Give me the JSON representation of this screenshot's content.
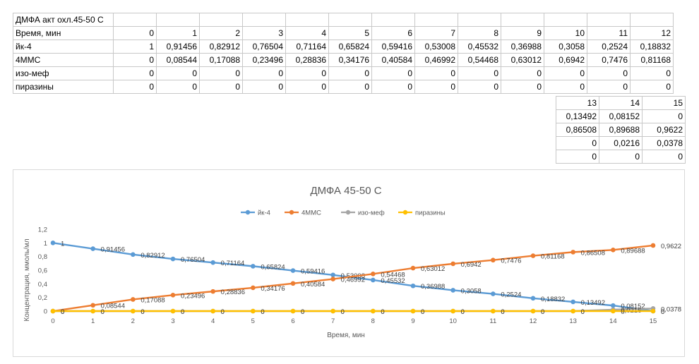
{
  "sheet": {
    "title": "ДМФА акт охл.45-50 С",
    "header_label": "Время, мин",
    "times": [
      "0",
      "1",
      "2",
      "3",
      "4",
      "5",
      "6",
      "7",
      "8",
      "9",
      "10",
      "11",
      "12"
    ],
    "rows": [
      {
        "label": "йк-4",
        "values": [
          "1",
          "0,91456",
          "0,82912",
          "0,76504",
          "0,71164",
          "0,65824",
          "0,59416",
          "0,53008",
          "0,45532",
          "0,36988",
          "0,3058",
          "0,2524",
          "0,18832"
        ]
      },
      {
        "label": "4ММС",
        "values": [
          "0",
          "0,08544",
          "0,17088",
          "0,23496",
          "0,28836",
          "0,34176",
          "0,40584",
          "0,46992",
          "0,54468",
          "0,63012",
          "0,6942",
          "0,7476",
          "0,81168"
        ]
      },
      {
        "label": "изо-меф",
        "values": [
          "0",
          "0",
          "0",
          "0",
          "0",
          "0",
          "0",
          "0",
          "0",
          "0",
          "0",
          "0",
          "0"
        ]
      },
      {
        "label": "пиразины",
        "values": [
          "0",
          "0",
          "0",
          "0",
          "0",
          "0",
          "0",
          "0",
          "0",
          "0",
          "0",
          "0",
          "0"
        ]
      }
    ],
    "ext_times": [
      "13",
      "14",
      "15"
    ],
    "ext_rows": [
      [
        "0,13492",
        "0,08152",
        "0"
      ],
      [
        "0,86508",
        "0,89688",
        "0,9622"
      ],
      [
        "0",
        "0,0216",
        "0,0378"
      ],
      [
        "0",
        "0",
        "0"
      ]
    ]
  },
  "chart_data": {
    "type": "line",
    "title": "ДМФА 45-50 С",
    "xlabel": "Время, мин",
    "ylabel": "Концентрация, ммоль/мл",
    "x": [
      0,
      1,
      2,
      3,
      4,
      5,
      6,
      7,
      8,
      9,
      10,
      11,
      12,
      13,
      14,
      15
    ],
    "xlim": [
      0,
      15
    ],
    "ylim": [
      0,
      1.2
    ],
    "y_ticks": [
      "0",
      "0,2",
      "0,4",
      "0,6",
      "0,8",
      "1",
      "1,2"
    ],
    "x_ticks": [
      "0",
      "1",
      "2",
      "3",
      "4",
      "5",
      "6",
      "7",
      "8",
      "9",
      "10",
      "11",
      "12",
      "13",
      "14",
      "15"
    ],
    "legend_position": "top",
    "grid": false,
    "series": [
      {
        "name": "йк-4",
        "color": "#5B9BD5",
        "values": [
          1,
          0.91456,
          0.82912,
          0.76504,
          0.71164,
          0.65824,
          0.59416,
          0.53008,
          0.45532,
          0.36988,
          0.3058,
          0.2524,
          0.18832,
          0.13492,
          0.08152,
          0
        ],
        "labels": [
          "1",
          "0,91456",
          "0,82912",
          "0,76504",
          "0,71164",
          "0,65824",
          "0,59416",
          "0,53008",
          "0,45532",
          "0,36988",
          "0,3058",
          "0,2524",
          "0,18832",
          "0,13492",
          "0,08152",
          "0"
        ]
      },
      {
        "name": "4ММС",
        "color": "#ED7D31",
        "values": [
          0,
          0.08544,
          0.17088,
          0.23496,
          0.28836,
          0.34176,
          0.40584,
          0.46992,
          0.54468,
          0.63012,
          0.6942,
          0.7476,
          0.81168,
          0.86508,
          0.89688,
          0.9622
        ],
        "labels": [
          "0",
          "0,08544",
          "0,17088",
          "0,23496",
          "0,28836",
          "0,34176",
          "0,40584",
          "0,46992",
          "0,54468",
          "0,63012",
          "0,6942",
          "0,7476",
          "0,81168",
          "0,86508",
          "0,89688",
          "0,9622"
        ]
      },
      {
        "name": "изо-меф",
        "color": "#A5A5A5",
        "values": [
          0,
          0,
          0,
          0,
          0,
          0,
          0,
          0,
          0,
          0,
          0,
          0,
          0,
          0,
          0.0216,
          0.0378
        ],
        "labels": [
          "0",
          "0",
          "0",
          "0",
          "0",
          "0",
          "0",
          "0",
          "0",
          "0",
          "0",
          "0",
          "0",
          "0",
          "0,0216",
          "0,0378"
        ]
      },
      {
        "name": "пиразины",
        "color": "#FFC000",
        "values": [
          0,
          0,
          0,
          0,
          0,
          0,
          0,
          0,
          0,
          0,
          0,
          0,
          0,
          0,
          0,
          0
        ],
        "labels": [
          "0",
          "0",
          "0",
          "0",
          "0",
          "0",
          "0",
          "0",
          "0",
          "0",
          "0",
          "0",
          "0",
          "0",
          "0",
          "0"
        ]
      }
    ]
  }
}
